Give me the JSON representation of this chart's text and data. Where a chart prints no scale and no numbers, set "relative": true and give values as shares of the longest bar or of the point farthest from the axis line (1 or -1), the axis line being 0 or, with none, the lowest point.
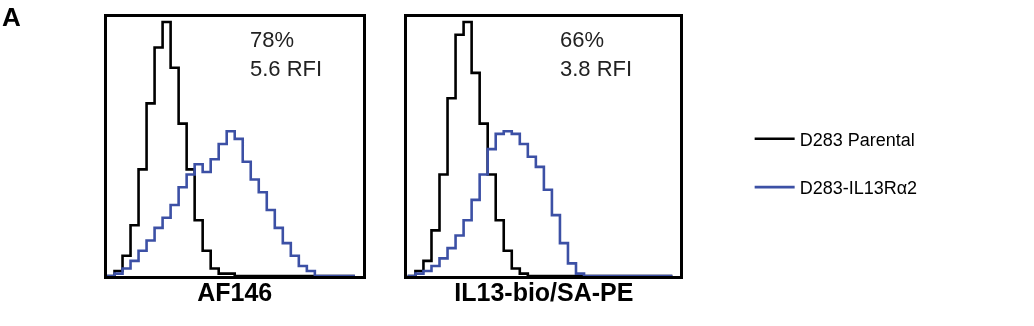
{
  "chart_data": [
    {
      "type": "step",
      "title": "A",
      "xlabel": "AF146",
      "relative": true,
      "legend": "right",
      "annotations": [
        "78%\n5.6 RFI"
      ],
      "categories": [
        null,
        null,
        null,
        null,
        null,
        null,
        null,
        null,
        null,
        null,
        null,
        null,
        null,
        null,
        null,
        null,
        null,
        null,
        null,
        null,
        null,
        null,
        null,
        null,
        null,
        null,
        null,
        null,
        null,
        null,
        null,
        null
      ],
      "series": [
        {
          "name": "D283 Parental",
          "color": "#000000",
          "values": [
            0,
            0.02,
            0.08,
            0.2,
            0.42,
            0.68,
            0.9,
            1.0,
            0.82,
            0.6,
            0.42,
            0.22,
            0.1,
            0.03,
            0.01,
            0.01,
            0,
            0,
            0,
            0,
            0,
            0,
            0,
            0,
            0,
            0,
            0,
            0,
            0,
            0,
            0,
            0
          ]
        },
        {
          "name": "D283-IL13Rα2",
          "color": "#3c50a5",
          "values": [
            0,
            0.01,
            0.03,
            0.06,
            0.1,
            0.14,
            0.19,
            0.23,
            0.28,
            0.35,
            0.4,
            0.44,
            0.41,
            0.46,
            0.52,
            0.57,
            0.54,
            0.45,
            0.38,
            0.33,
            0.26,
            0.19,
            0.13,
            0.08,
            0.04,
            0.02,
            0,
            0,
            0,
            0,
            0,
            0
          ]
        }
      ]
    },
    {
      "type": "step",
      "xlabel": "IL13-bio/SA-PE",
      "relative": true,
      "annotations": [
        "66%\n3.8 RFI"
      ],
      "categories": [
        null,
        null,
        null,
        null,
        null,
        null,
        null,
        null,
        null,
        null,
        null,
        null,
        null,
        null,
        null,
        null,
        null,
        null,
        null,
        null,
        null,
        null,
        null,
        null,
        null,
        null,
        null,
        null,
        null,
        null,
        null,
        null,
        null,
        null
      ],
      "series": [
        {
          "color": "#000000",
          "values": [
            0,
            0.02,
            0.06,
            0.18,
            0.4,
            0.7,
            0.95,
            1.0,
            0.8,
            0.6,
            0.4,
            0.22,
            0.1,
            0.03,
            0.01,
            0,
            0,
            0,
            0,
            0,
            0,
            0,
            0,
            0,
            0,
            0,
            0,
            0,
            0,
            0,
            0,
            0,
            0,
            0
          ]
        },
        {
          "color": "#3c50a5",
          "values": [
            0,
            0.01,
            0.02,
            0.04,
            0.07,
            0.11,
            0.16,
            0.22,
            0.3,
            0.4,
            0.5,
            0.56,
            0.57,
            0.56,
            0.52,
            0.47,
            0.43,
            0.34,
            0.24,
            0.13,
            0.05,
            0.01,
            0,
            0,
            0,
            0,
            0,
            0,
            0,
            0,
            0,
            0,
            0,
            0
          ]
        }
      ]
    }
  ]
}
